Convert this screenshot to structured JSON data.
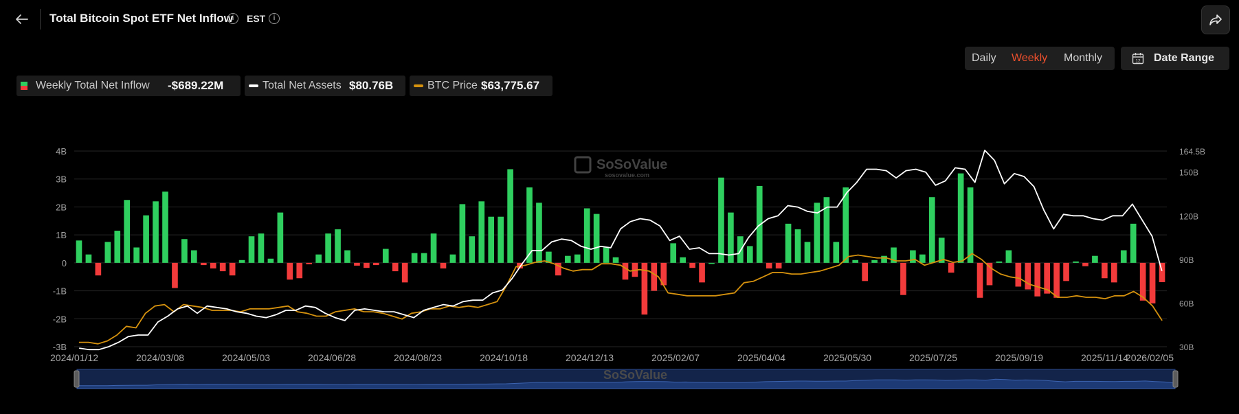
{
  "header": {
    "title": "Total Bitcoin Spot ETF Net Inflow",
    "timezone": "EST"
  },
  "controls": {
    "periods": [
      "Daily",
      "Weekly",
      "Monthly"
    ],
    "active_period": "Weekly",
    "date_range_label": "Date Range"
  },
  "legend": {
    "inflow_label": "Weekly Total Net Inflow",
    "inflow_value": "-$689.22M",
    "assets_label": "Total Net Assets",
    "assets_value": "$80.76B",
    "btc_label": "BTC Price",
    "btc_value": "$63,775.67"
  },
  "watermark": {
    "brand": "SoSoValue",
    "site": "sosovalue.com"
  },
  "colors": {
    "positive_bar": "#2fcf5f",
    "negative_bar": "#f23b3b",
    "total_net_assets_line": "#ffffff",
    "btc_price_line": "#d6920e",
    "active_period": "#f0502d",
    "navigator_fill": "#1d3a75"
  },
  "chart_data": {
    "type": "bar",
    "x_labels": [
      "2024/01/12",
      "2024/03/08",
      "2024/05/03",
      "2024/06/28",
      "2024/08/23",
      "2024/10/18",
      "2024/12/13",
      "2025/02/07",
      "2025/04/04",
      "2025/05/30",
      "2025/07/25",
      "2025/09/19",
      "2025/11/14",
      "2026/02/05"
    ],
    "left_axis": {
      "ticks": [
        "4B",
        "3B",
        "2B",
        "1B",
        "0",
        "-1B",
        "-2B",
        "-3B"
      ],
      "range": [
        -3,
        4
      ],
      "unit": "B"
    },
    "right_axis": {
      "ticks": [
        "164.5B",
        "150B",
        "120B",
        "90B",
        "60B",
        "30B"
      ],
      "range": [
        30,
        164.5
      ],
      "unit": "B"
    },
    "series": [
      {
        "name": "Weekly Total Net Inflow",
        "axis": "left",
        "values": [
          0.8,
          0.3,
          -0.45,
          0.75,
          1.15,
          2.25,
          0.55,
          1.7,
          2.2,
          2.55,
          -0.9,
          0.85,
          0.45,
          -0.08,
          -0.2,
          -0.3,
          -0.45,
          0.1,
          0.95,
          1.05,
          0.15,
          1.8,
          -0.6,
          -0.55,
          -0.05,
          0.3,
          1.05,
          1.2,
          0.45,
          -0.1,
          -0.18,
          -0.08,
          0.5,
          -0.3,
          -0.7,
          0.35,
          0.35,
          1.05,
          -0.2,
          0.3,
          2.1,
          0.95,
          2.2,
          1.65,
          1.65,
          3.35,
          -0.2,
          2.7,
          2.15,
          0.4,
          -0.45,
          0.25,
          0.3,
          1.95,
          1.75,
          0.55,
          0.2,
          -0.6,
          -0.5,
          -1.85,
          -1.0,
          -0.8,
          0.7,
          0.2,
          -0.18,
          -0.7,
          0.0,
          3.05,
          1.8,
          0.95,
          0.6,
          2.75,
          -0.2,
          -0.2,
          1.4,
          1.2,
          0.75,
          2.15,
          2.35,
          0.75,
          2.7,
          0.1,
          -0.65,
          0.1,
          0.25,
          0.55,
          -1.15,
          0.45,
          0.3,
          2.35,
          0.9,
          -0.35,
          3.2,
          2.7,
          -1.25,
          -0.8,
          0.05,
          0.45,
          -0.85,
          -0.95,
          -1.2,
          -1.1,
          -1.25,
          -0.65,
          0.05,
          -0.12,
          0.25,
          -0.55,
          -0.7,
          0.45,
          1.4,
          -1.35,
          -1.45,
          -0.69
        ]
      },
      {
        "name": "Total Net Assets",
        "axis": "right",
        "values": [
          29,
          28,
          28,
          30,
          33,
          37,
          38,
          38,
          47,
          51,
          56,
          58,
          53,
          58,
          57,
          56,
          54,
          53,
          51,
          50,
          52,
          55,
          55,
          58,
          57,
          53,
          50,
          48,
          55,
          56,
          55,
          54,
          54,
          52,
          50,
          55,
          57,
          59,
          58,
          61,
          62,
          62,
          67,
          69,
          77,
          87,
          96,
          96,
          102,
          104,
          103,
          99,
          97,
          99,
          98,
          111,
          116,
          118,
          117,
          113,
          103,
          106,
          97,
          98,
          94,
          94,
          93,
          94,
          105,
          113,
          118,
          120,
          127,
          126,
          123,
          122,
          126,
          126,
          136,
          143,
          152,
          152,
          151,
          146,
          151,
          152,
          150,
          141,
          144,
          153,
          152,
          143,
          165,
          158,
          142,
          149,
          147,
          140,
          124,
          111,
          121,
          120,
          120,
          118,
          117,
          120,
          120,
          128,
          117,
          106,
          82
        ]
      },
      {
        "name": "BTC Price",
        "axis": "right",
        "values": [
          33,
          33,
          32,
          34,
          38,
          44,
          43,
          53,
          58,
          59,
          54,
          59,
          58,
          57,
          55,
          55,
          55,
          54,
          56,
          56,
          56,
          57,
          58,
          54,
          53,
          51,
          51,
          54,
          55,
          56,
          54,
          54,
          53,
          51,
          49,
          53,
          54,
          56,
          56,
          58,
          57,
          58,
          57,
          59,
          61,
          72,
          85,
          86,
          88,
          89,
          87,
          84,
          82,
          83,
          83,
          87,
          87,
          86,
          82,
          83,
          82,
          78,
          67,
          66,
          65,
          65,
          65,
          65,
          66,
          67,
          74,
          75,
          78,
          81,
          81,
          80,
          80,
          81,
          82,
          84,
          86,
          92,
          93,
          92,
          91,
          91,
          89,
          89,
          90,
          86,
          88,
          90,
          88,
          89,
          94,
          90,
          84,
          80,
          78,
          77,
          73,
          71,
          69,
          64,
          64,
          65,
          64,
          64,
          63,
          65,
          65,
          68,
          64,
          58,
          48
        ]
      }
    ]
  }
}
